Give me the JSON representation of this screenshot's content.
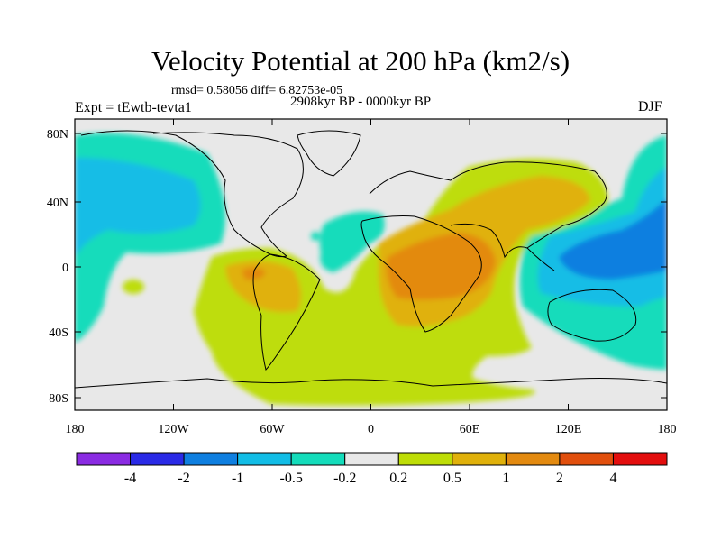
{
  "header": {
    "title": "Velocity Potential at 200 hPa (km2/s)",
    "subtitle": "rmsd= 0.58056 diff= 6.82753e-05",
    "left_label": "Expt = tEwtb-tevta1",
    "center_label": "2908kyr BP - 0000kyr BP",
    "right_label": "DJF"
  },
  "axes": {
    "lat_ticks": [
      "80N",
      "40N",
      "0",
      "40S",
      "80S"
    ],
    "lon_ticks": [
      "180",
      "120W",
      "60W",
      "0",
      "60E",
      "120E",
      "180"
    ]
  },
  "colorbar": {
    "colors": [
      "#8a2be2",
      "#2a2ae6",
      "#0f7fe0",
      "#12bde6",
      "#14dcbb",
      "#e8e8e8",
      "#bedd07",
      "#e0b10b",
      "#e38a10",
      "#e14f0d",
      "#e30e0e"
    ],
    "labels": [
      "-4",
      "-2",
      "-1",
      "-0.5",
      "-0.2",
      "0.2",
      "0.5",
      "1",
      "2",
      "4"
    ]
  },
  "colors": {
    "neutral": "#e8e8e8",
    "lime": "#bedd07",
    "gold": "#e0b10b",
    "orange": "#e38a10",
    "aqua": "#14dcbb",
    "cyan": "#12bde6",
    "blue": "#0f7fe0"
  }
}
